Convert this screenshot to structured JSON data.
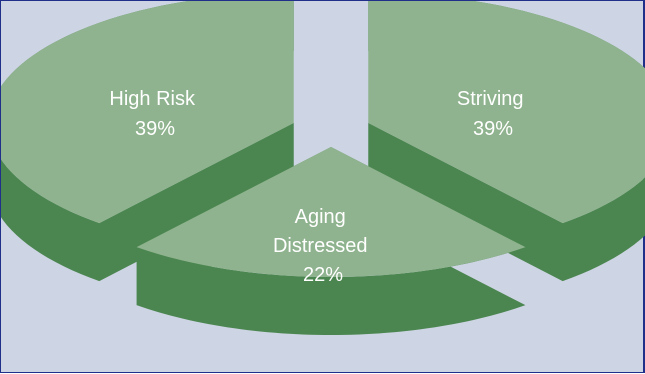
{
  "chart_data": {
    "type": "pie",
    "style": "3d-exploded",
    "title": "",
    "slices": [
      {
        "label": "High Risk",
        "value": 39,
        "display": "39%"
      },
      {
        "label": "Striving",
        "value": 39,
        "display": "39%"
      },
      {
        "label": "Aging Distressed",
        "value": 22,
        "display": "22%"
      }
    ],
    "colors": {
      "top": "#8fb38e",
      "side": "#4b8650",
      "background": "#cdd4e3",
      "border": "#1f2f8a",
      "label": "#ffffff"
    },
    "legend": "none"
  }
}
